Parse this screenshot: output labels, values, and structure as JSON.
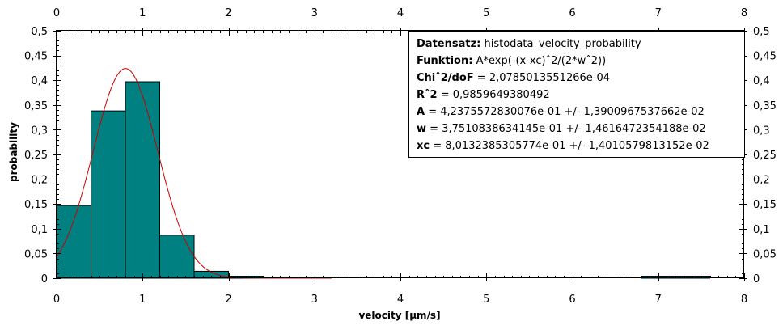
{
  "chart_data": {
    "type": "bar",
    "xlabel": "velocity [µm/s]",
    "ylabel": "probability",
    "xlim": [
      0,
      8
    ],
    "ylim": [
      0,
      0.5
    ],
    "x_ticks": [
      "0",
      "1",
      "2",
      "3",
      "4",
      "5",
      "6",
      "7",
      "8"
    ],
    "y_ticks": [
      "0",
      "0,05",
      "0,1",
      "0,15",
      "0,2",
      "0,25",
      "0,3",
      "0,35",
      "0,4",
      "0,45",
      "0,5"
    ],
    "grid": false,
    "bars": [
      {
        "x0": 0.0,
        "x1": 0.4,
        "value": 0.147
      },
      {
        "x0": 0.4,
        "x1": 0.8,
        "value": 0.338
      },
      {
        "x0": 0.8,
        "x1": 1.2,
        "value": 0.397
      },
      {
        "x0": 1.2,
        "x1": 1.6,
        "value": 0.087
      },
      {
        "x0": 1.6,
        "x1": 2.0,
        "value": 0.014
      },
      {
        "x0": 2.0,
        "x1": 2.4,
        "value": 0.004
      },
      {
        "x0": 6.8,
        "x1": 7.6,
        "value": 0.004
      }
    ],
    "fit": {
      "type": "gaussian",
      "A": 0.42375572830076,
      "w": 0.37510838634145,
      "xc": 0.80132385305774,
      "color": "#cc0000"
    },
    "bar_color": "#008080",
    "stats": [
      {
        "key": "Datensatz:",
        "value": " histodata_velocity_probability"
      },
      {
        "key": "Funktion:",
        "value": " A*exp(-(x-xc)ˆ2/(2*wˆ2))"
      },
      {
        "key": "Chiˆ2/doF",
        "value": " = 2,0785013551266e-04"
      },
      {
        "key": "Rˆ2",
        "value": " = 0,9859649380492"
      },
      {
        "key": "A",
        "value": " = 4,2375572830076e-01 +/- 1,3900967537662e-02"
      },
      {
        "key": "w",
        "value": " = 3,7510838634145e-01 +/- 1,4616472354188e-02"
      },
      {
        "key": "xc",
        "value": " = 8,0132385305774e-01 +/- 1,4010579813152e-02"
      }
    ]
  }
}
